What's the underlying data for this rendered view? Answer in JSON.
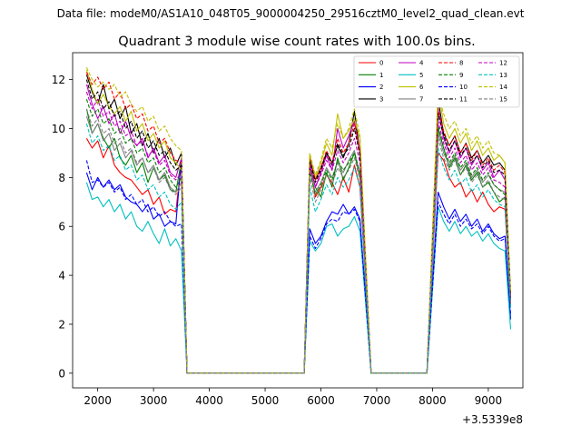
{
  "suptitle": "Data file: modeM0/AS1A10_048T05_9000004250_29516cztM0_level2_quad_clean.evt",
  "chart_data": {
    "type": "line",
    "title": "Quadrant 3 module wise count rates with 100.0s bins.",
    "xlabel": "",
    "ylabel": "",
    "x_offset_label": "+3.5339e8",
    "xlim": [
      1550,
      9620
    ],
    "ylim": [
      -0.6,
      13.1
    ],
    "xticks": [
      2000,
      3000,
      4000,
      5000,
      6000,
      7000,
      8000,
      9000
    ],
    "yticks": [
      0,
      2,
      4,
      6,
      8,
      10,
      12
    ],
    "legend_position": "upper-right",
    "legend_columns": 4,
    "gaps": [
      {
        "from_x": 3600,
        "to_x": 5700,
        "value": 0
      },
      {
        "from_x": 6900,
        "to_x": 7900,
        "value": 0
      }
    ],
    "seg_x": [
      [
        1800,
        1900,
        2000,
        2100,
        2200,
        2300,
        2400,
        2500,
        2600,
        2700,
        2800,
        2900,
        3000,
        3100,
        3200,
        3300,
        3400,
        3500
      ],
      [
        5800,
        5900,
        6000,
        6100,
        6200,
        6300,
        6400,
        6500,
        6600,
        6700
      ],
      [
        8100,
        8200,
        8300,
        8400,
        8500,
        8600,
        8700,
        8800,
        8900,
        9000,
        9100,
        9200,
        9300
      ]
    ],
    "transition_x": {
      "seg1_end": 3600,
      "seg2_start": 5700,
      "seg2_end": 6900,
      "seg3_start": 7900,
      "seg3_end": 9400
    },
    "series": [
      {
        "name": "0",
        "color": "#ff0000",
        "dash": false,
        "segments": [
          [
            9.6,
            9.2,
            9.5,
            8.8,
            9.3,
            8.5,
            8.2,
            8.0,
            7.9,
            7.6,
            7.3,
            7.5,
            6.9,
            7.2,
            6.5,
            6.7,
            6.6,
            8.7
          ],
          [
            8.5,
            7.2,
            7.6,
            8.1,
            7.8,
            7.3,
            8.0,
            7.4,
            8.5,
            7.6
          ],
          [
            9.0,
            8.7,
            8.0,
            7.6,
            7.8,
            7.2,
            7.5,
            7.0,
            7.4,
            6.9,
            6.6,
            6.8,
            6.7
          ]
        ],
        "end_value": 2.8
      },
      {
        "name": "1",
        "color": "#008000",
        "dash": false,
        "segments": [
          [
            10.8,
            9.8,
            10.2,
            9.6,
            9.2,
            9.6,
            8.8,
            8.5,
            8.9,
            8.2,
            8.6,
            7.8,
            8.4,
            7.9,
            8.1,
            7.5,
            7.4,
            8.7
          ],
          [
            8.5,
            7.6,
            7.2,
            8.2,
            7.6,
            8.8,
            7.9,
            8.4,
            9.0,
            8.0
          ],
          [
            10.0,
            9.2,
            8.4,
            8.8,
            8.1,
            8.5,
            7.9,
            8.2,
            7.6,
            7.8,
            7.4,
            7.0,
            7.2
          ]
        ],
        "end_value": 3.0
      },
      {
        "name": "2",
        "color": "#0000ff",
        "dash": false,
        "segments": [
          [
            8.2,
            7.5,
            8.0,
            7.6,
            7.9,
            7.5,
            7.7,
            7.2,
            7.0,
            6.9,
            6.6,
            6.9,
            6.3,
            6.5,
            6.0,
            6.2,
            6.1,
            8.8
          ],
          [
            5.9,
            5.3,
            5.6,
            6.2,
            6.6,
            6.5,
            6.9,
            6.5,
            6.8,
            6.3
          ],
          [
            7.4,
            6.8,
            6.3,
            6.7,
            6.2,
            6.5,
            6.0,
            6.3,
            5.8,
            6.1,
            5.7,
            5.5,
            5.6
          ]
        ],
        "end_value": 2.2
      },
      {
        "name": "3",
        "color": "#000000",
        "dash": false,
        "segments": [
          [
            12.2,
            11.5,
            11.0,
            11.8,
            10.8,
            11.2,
            10.4,
            10.9,
            9.8,
            10.2,
            9.3,
            9.8,
            9.0,
            9.6,
            8.8,
            9.2,
            8.5,
            9.0
          ],
          [
            8.8,
            7.9,
            8.4,
            9.0,
            8.6,
            9.3,
            8.8,
            9.4,
            10.7,
            9.0
          ],
          [
            11.2,
            9.8,
            9.3,
            9.7,
            9.0,
            9.4,
            8.8,
            9.1,
            8.6,
            8.9,
            8.5,
            8.6,
            8.3
          ]
        ],
        "end_value": 3.2
      },
      {
        "name": "4",
        "color": "#c000c0",
        "dash": false,
        "segments": [
          [
            11.8,
            11.0,
            10.4,
            10.9,
            10.2,
            10.6,
            9.8,
            10.3,
            9.6,
            9.3,
            9.6,
            8.8,
            9.2,
            8.6,
            8.9,
            8.2,
            8.0,
            8.8
          ],
          [
            8.6,
            7.6,
            8.2,
            8.9,
            8.3,
            10.0,
            9.2,
            9.7,
            10.3,
            9.0
          ],
          [
            10.8,
            9.6,
            9.0,
            9.5,
            8.8,
            9.2,
            8.5,
            8.9,
            8.3,
            8.6,
            8.0,
            8.3,
            7.9
          ]
        ],
        "end_value": 3.0
      },
      {
        "name": "5",
        "color": "#00c0c0",
        "dash": false,
        "segments": [
          [
            7.8,
            7.1,
            7.2,
            6.8,
            7.1,
            6.6,
            6.9,
            6.3,
            6.6,
            6.0,
            5.8,
            6.2,
            5.7,
            5.3,
            5.9,
            5.2,
            5.5,
            5.0
          ],
          [
            5.4,
            5.0,
            5.3,
            6.0,
            6.1,
            5.6,
            5.9,
            6.0,
            6.4,
            5.8
          ],
          [
            6.8,
            6.2,
            5.8,
            6.2,
            5.7,
            6.0,
            5.6,
            5.8,
            5.4,
            5.7,
            5.3,
            5.1,
            5.0
          ]
        ],
        "end_value": 1.8
      },
      {
        "name": "6",
        "color": "#c0c000",
        "dash": false,
        "segments": [
          [
            12.4,
            11.6,
            11.0,
            11.4,
            10.9,
            10.6,
            10.9,
            10.3,
            10.7,
            9.9,
            10.2,
            9.5,
            9.8,
            9.2,
            9.5,
            8.8,
            8.6,
            8.3
          ],
          [
            8.9,
            8.0,
            8.6,
            9.4,
            8.9,
            10.6,
            9.6,
            9.9,
            10.4,
            9.6
          ],
          [
            11.6,
            10.2,
            9.6,
            10.0,
            9.4,
            9.8,
            9.1,
            9.5,
            8.9,
            9.2,
            8.7,
            8.9,
            8.6
          ]
        ],
        "end_value": 3.1
      },
      {
        "name": "7",
        "color": "#808080",
        "dash": false,
        "segments": [
          [
            10.5,
            9.8,
            10.2,
            9.5,
            9.8,
            9.1,
            9.4,
            8.8,
            9.1,
            8.5,
            8.8,
            8.2,
            8.5,
            7.9,
            8.2,
            7.6,
            7.4,
            7.8
          ],
          [
            8.3,
            7.4,
            7.8,
            8.4,
            8.0,
            8.6,
            8.2,
            8.7,
            9.1,
            8.1
          ],
          [
            9.8,
            9.0,
            8.5,
            8.9,
            8.3,
            8.6,
            8.0,
            8.3,
            7.8,
            8.1,
            7.7,
            7.5,
            7.4
          ]
        ],
        "end_value": 2.9
      },
      {
        "name": "8",
        "color": "#ff0000",
        "dash": true,
        "segments": [
          [
            12.3,
            11.8,
            12.1,
            11.6,
            11.9,
            11.2,
            11.5,
            10.8,
            11.0,
            10.4,
            10.6,
            9.9,
            10.1,
            9.4,
            9.6,
            9.0,
            8.7,
            8.6
          ],
          [
            8.8,
            7.9,
            8.4,
            9.1,
            8.6,
            9.6,
            9.0,
            9.4,
            10.2,
            9.1
          ],
          [
            10.8,
            9.9,
            9.3,
            9.7,
            9.0,
            9.4,
            8.7,
            9.1,
            8.5,
            8.8,
            8.3,
            8.5,
            8.2
          ]
        ],
        "end_value": 3.1
      },
      {
        "name": "9",
        "color": "#008000",
        "dash": true,
        "segments": [
          [
            11.2,
            10.5,
            10.8,
            10.2,
            10.4,
            9.8,
            10.0,
            9.4,
            9.6,
            9.0,
            9.2,
            8.6,
            8.8,
            8.2,
            8.4,
            7.9,
            7.6,
            8.0
          ],
          [
            8.2,
            7.3,
            7.7,
            8.3,
            7.9,
            8.7,
            8.3,
            8.6,
            9.0,
            8.2
          ],
          [
            10.1,
            9.2,
            8.6,
            9.0,
            8.4,
            8.7,
            8.1,
            8.4,
            7.9,
            8.2,
            7.7,
            7.5,
            7.3
          ]
        ],
        "end_value": 2.9
      },
      {
        "name": "10",
        "color": "#0000ff",
        "dash": true,
        "segments": [
          [
            8.7,
            7.8,
            7.9,
            7.6,
            7.8,
            7.4,
            7.6,
            7.1,
            7.3,
            6.9,
            7.1,
            6.6,
            6.8,
            6.4,
            6.6,
            6.2,
            6.0,
            6.1
          ],
          [
            5.6,
            5.1,
            5.5,
            6.1,
            6.3,
            6.2,
            6.6,
            6.5,
            6.7,
            6.2
          ],
          [
            7.0,
            6.5,
            6.1,
            6.5,
            6.0,
            6.3,
            5.9,
            6.1,
            5.7,
            6.0,
            5.6,
            5.4,
            5.5
          ]
        ],
        "end_value": 2.4
      },
      {
        "name": "11",
        "color": "#000000",
        "dash": true,
        "segments": [
          [
            12.0,
            11.2,
            11.5,
            10.8,
            11.1,
            10.5,
            10.7,
            10.0,
            10.3,
            9.6,
            9.9,
            9.2,
            9.5,
            8.9,
            9.1,
            8.6,
            8.3,
            8.5
          ],
          [
            8.7,
            7.8,
            8.3,
            9.0,
            8.5,
            9.4,
            8.9,
            9.2,
            10.0,
            8.9
          ],
          [
            10.6,
            9.7,
            9.1,
            9.5,
            8.9,
            9.2,
            8.6,
            8.9,
            8.4,
            8.7,
            8.2,
            8.3,
            8.1
          ]
        ],
        "end_value": 3.1
      },
      {
        "name": "12",
        "color": "#c000c0",
        "dash": true,
        "segments": [
          [
            11.5,
            10.8,
            11.2,
            10.5,
            10.7,
            10.1,
            10.3,
            9.7,
            9.9,
            9.3,
            9.5,
            8.9,
            9.1,
            8.5,
            8.7,
            8.1,
            7.9,
            8.2
          ],
          [
            8.5,
            7.6,
            8.1,
            8.7,
            8.3,
            9.1,
            8.6,
            9.0,
            9.6,
            8.6
          ],
          [
            10.3,
            9.4,
            8.8,
            9.2,
            8.6,
            8.9,
            8.3,
            8.6,
            8.1,
            8.4,
            7.9,
            7.8,
            7.6
          ]
        ],
        "end_value": 3.0
      },
      {
        "name": "13",
        "color": "#00c0c0",
        "dash": true,
        "segments": [
          [
            10.2,
            9.4,
            9.7,
            9.1,
            9.3,
            8.7,
            8.9,
            8.3,
            8.5,
            7.9,
            8.1,
            7.5,
            7.7,
            7.2,
            7.4,
            6.9,
            6.7,
            7.0
          ],
          [
            7.6,
            6.6,
            7.1,
            7.7,
            7.3,
            8.0,
            7.6,
            7.9,
            8.4,
            7.6
          ],
          [
            9.2,
            8.4,
            7.9,
            8.3,
            7.7,
            8.0,
            7.4,
            7.7,
            7.2,
            7.5,
            7.1,
            6.9,
            6.8
          ]
        ],
        "end_value": 2.7
      },
      {
        "name": "14",
        "color": "#c0c000",
        "dash": true,
        "segments": [
          [
            12.5,
            12.0,
            11.7,
            11.9,
            11.6,
            11.8,
            11.3,
            11.5,
            11.0,
            10.7,
            10.9,
            10.3,
            10.5,
            9.9,
            10.1,
            9.6,
            9.3,
            9.1
          ],
          [
            9.0,
            8.1,
            8.7,
            9.6,
            9.2,
            10.2,
            9.6,
            10.0,
            10.8,
            9.7
          ],
          [
            11.4,
            10.6,
            10.0,
            10.3,
            9.7,
            10.0,
            9.4,
            9.7,
            9.2,
            9.5,
            9.0,
            8.9,
            8.6
          ]
        ],
        "end_value": 3.3
      },
      {
        "name": "15",
        "color": "#808080",
        "dash": true,
        "segments": [
          [
            10.8,
            10.1,
            10.4,
            9.8,
            10.0,
            9.4,
            9.6,
            9.0,
            9.2,
            8.6,
            8.8,
            8.2,
            8.4,
            7.8,
            8.0,
            7.5,
            7.3,
            7.6
          ],
          [
            8.0,
            7.0,
            7.5,
            8.1,
            7.7,
            8.4,
            8.0,
            8.3,
            8.8,
            7.9
          ],
          [
            9.6,
            8.8,
            8.3,
            8.7,
            8.1,
            8.4,
            7.8,
            8.1,
            7.6,
            7.9,
            7.4,
            7.2,
            7.1
          ]
        ],
        "end_value": 2.8
      }
    ]
  }
}
